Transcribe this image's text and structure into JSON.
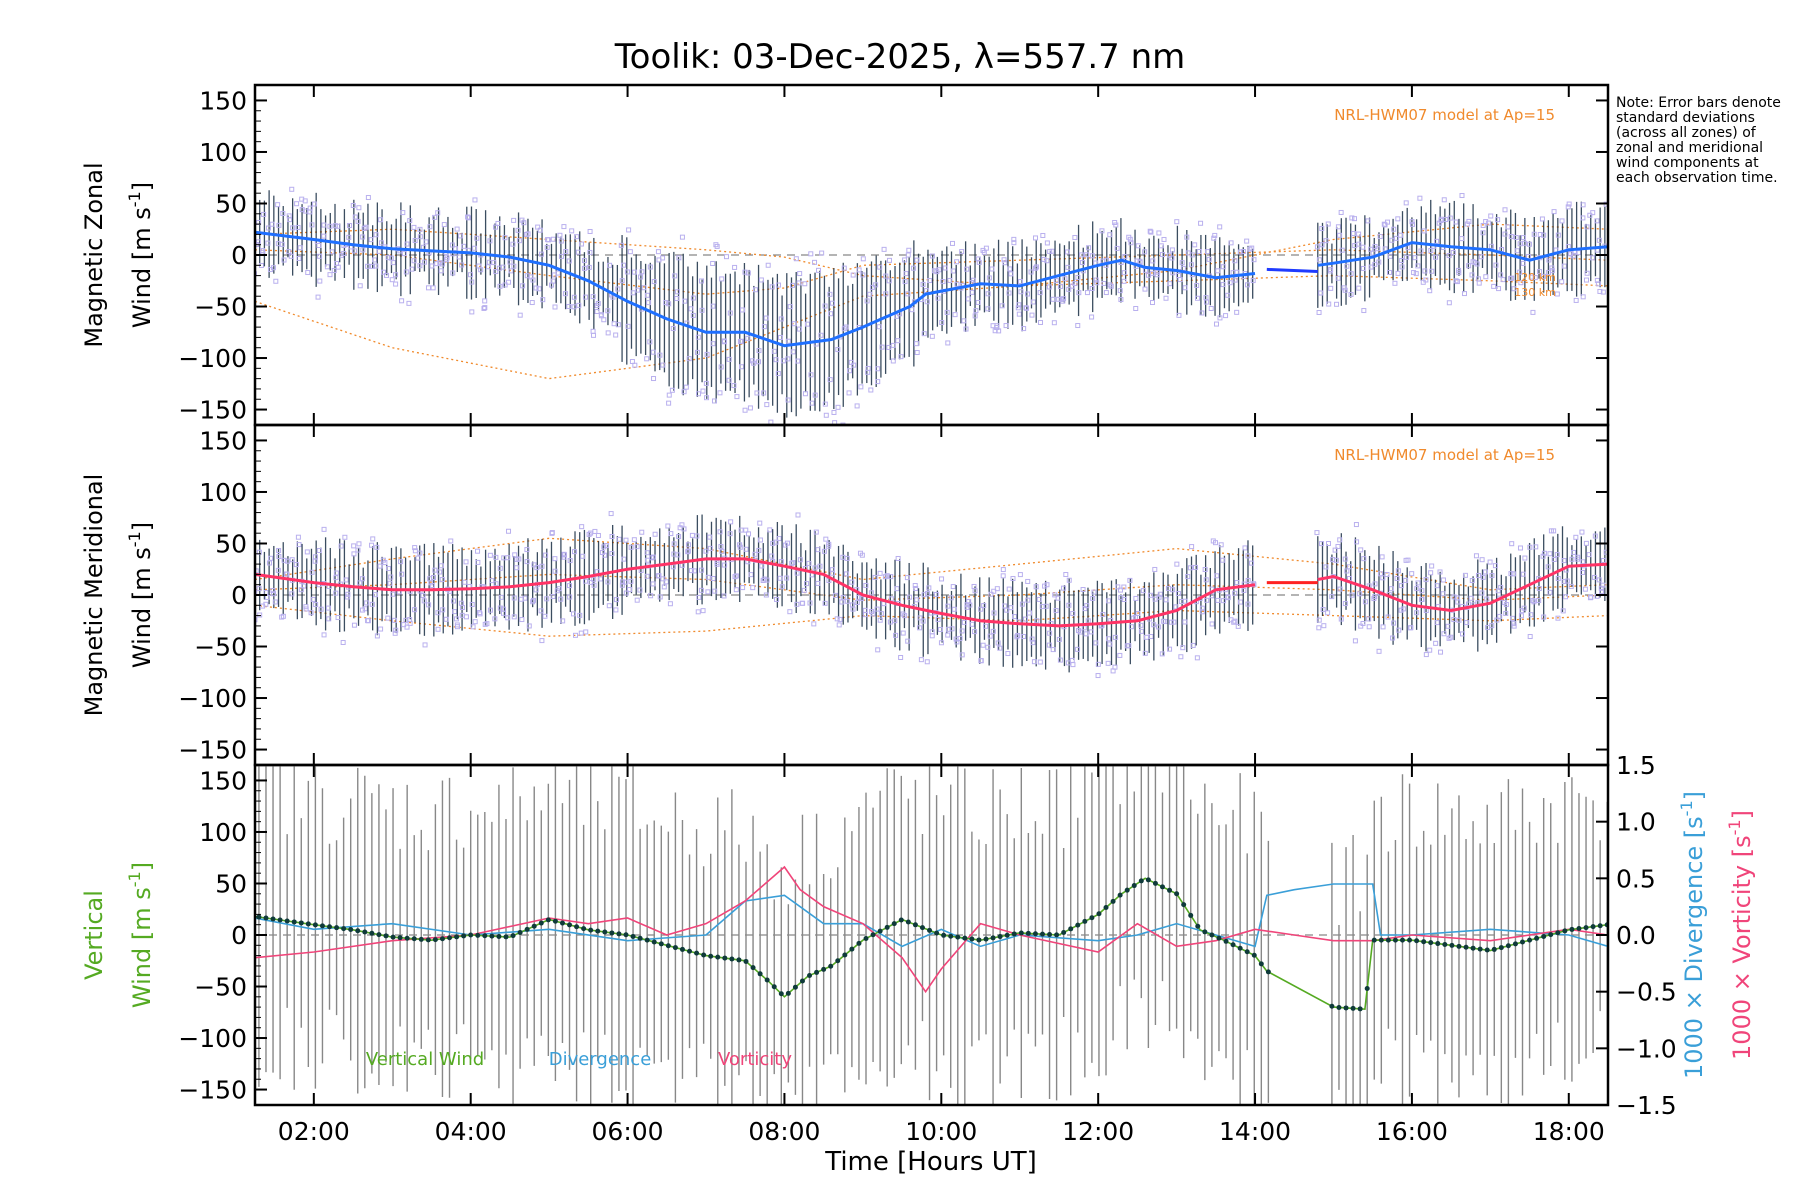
{
  "colors": {
    "zonal_mean": "#1e6fff",
    "zonal_line": "#1f3bff",
    "meridional_mean": "#ff3366",
    "model": "#f08a2c",
    "scatter": "#b9b0ee",
    "errorbar": "#1a2f45",
    "vertical": "#55aa22",
    "divergence": "#3a9fd8",
    "vorticity": "#f0457a",
    "grey": "#888888"
  },
  "note_text": "Note: Error bars denote standard deviations (across all zones) of zonal and meridional wind components at each observation time.",
  "chart_data": {
    "type": "line",
    "title": "Toolik: 03-Dec-2025, λ=557.7 nm",
    "xlabel": "Time [Hours UT]",
    "xlim": [
      1.25,
      18.5
    ],
    "x_ticks": [
      2,
      4,
      6,
      8,
      10,
      12,
      14,
      16,
      18
    ],
    "x_tick_labels": [
      "02:00",
      "04:00",
      "06:00",
      "08:00",
      "10:00",
      "12:00",
      "14:00",
      "16:00",
      "18:00"
    ],
    "panels": [
      {
        "name": "zonal",
        "ylabel_line1": "Magnetic Zonal",
        "ylabel_line2": "Wind [m s",
        "ylabel_exp": "-1",
        "ylabel_end": "]",
        "ylim": [
          -165,
          165
        ],
        "y_ticks": [
          150,
          100,
          50,
          0,
          -50,
          -100,
          -150
        ],
        "model_label": "NRL-HWM07 model at Ap=15",
        "model_alt_labels": [
          "120 km",
          "130 km"
        ],
        "mean_series": {
          "x": [
            1.25,
            2.0,
            2.5,
            3.0,
            3.5,
            4.0,
            4.5,
            5.0,
            5.5,
            6.0,
            6.5,
            7.0,
            7.5,
            8.0,
            8.3,
            8.6,
            9.0,
            9.3,
            9.6,
            9.8,
            10.0,
            10.5,
            11.0,
            11.5,
            12.0,
            12.3,
            12.6,
            13.0,
            13.5,
            14.0
          ],
          "y": [
            22,
            15,
            10,
            6,
            4,
            2,
            -2,
            -10,
            -25,
            -45,
            -62,
            -75,
            -75,
            -88,
            -85,
            -82,
            -70,
            -60,
            -50,
            -38,
            -35,
            -28,
            -30,
            -20,
            -10,
            -5,
            -12,
            -15,
            -22,
            -18
          ]
        },
        "gap_series": {
          "x": [
            14.15,
            14.8
          ],
          "y": [
            -14,
            -16
          ]
        },
        "mean_series_late": {
          "x": [
            14.8,
            15.0,
            15.5,
            16.0,
            16.5,
            17.0,
            17.5,
            18.0,
            18.5
          ],
          "y": [
            -10,
            -8,
            -2,
            12,
            8,
            5,
            -5,
            5,
            8
          ]
        },
        "model_series": [
          {
            "x": [
              1.25,
              3.0,
              5.0,
              7.0,
              8.0,
              9.0,
              11.0,
              13.0,
              15.0,
              17.0,
              18.5
            ],
            "y": [
              20,
              25,
              15,
              5,
              -2,
              -20,
              -30,
              -15,
              15,
              30,
              25
            ]
          },
          {
            "x": [
              1.25,
              3.0,
              5.0,
              7.0,
              8.0,
              9.0,
              11.0,
              13.0,
              15.0,
              17.0,
              18.5
            ],
            "y": [
              5,
              0,
              -20,
              -38,
              -32,
              -10,
              -5,
              0,
              5,
              0,
              -5
            ]
          },
          {
            "x": [
              1.25,
              3.0,
              5.0,
              7.0,
              8.0,
              9.0,
              11.0,
              13.0,
              15.0,
              17.0,
              18.5
            ],
            "y": [
              -45,
              -90,
              -120,
              -100,
              -70,
              -40,
              -30,
              -25,
              -20,
              -25,
              -30
            ]
          }
        ]
      },
      {
        "name": "meridional",
        "ylabel_line1": "Magnetic Meridional",
        "ylabel_line2": "Wind [m s",
        "ylabel_exp": "-1",
        "ylabel_end": "]",
        "ylim": [
          -165,
          165
        ],
        "y_ticks": [
          150,
          100,
          50,
          0,
          -50,
          -100,
          -150
        ],
        "model_label": "NRL-HWM07 model at Ap=15",
        "mean_series": {
          "x": [
            1.25,
            2.0,
            2.5,
            3.0,
            3.5,
            4.0,
            4.5,
            5.0,
            5.5,
            6.0,
            6.5,
            7.0,
            7.5,
            8.0,
            8.5,
            9.0,
            9.5,
            10.0,
            10.5,
            11.0,
            11.5,
            12.0,
            12.5,
            13.0,
            13.5,
            14.0
          ],
          "y": [
            20,
            12,
            8,
            5,
            5,
            6,
            8,
            12,
            18,
            25,
            30,
            35,
            35,
            28,
            20,
            0,
            -10,
            -18,
            -25,
            -28,
            -30,
            -28,
            -25,
            -15,
            5,
            10
          ]
        },
        "gap_series": {
          "x": [
            14.15,
            14.8
          ],
          "y": [
            12,
            12
          ]
        },
        "mean_series_late": {
          "x": [
            14.8,
            15.0,
            15.5,
            16.0,
            16.5,
            17.0,
            17.5,
            18.0,
            18.5
          ],
          "y": [
            15,
            18,
            5,
            -10,
            -15,
            -8,
            10,
            28,
            30
          ]
        },
        "model_series": [
          {
            "x": [
              1.25,
              3.0,
              5.0,
              7.0,
              9.0,
              11.0,
              13.0,
              15.0,
              17.0,
              18.5
            ],
            "y": [
              15,
              35,
              55,
              45,
              15,
              30,
              45,
              30,
              5,
              10
            ]
          },
          {
            "x": [
              1.25,
              3.0,
              5.0,
              7.0,
              9.0,
              11.0,
              13.0,
              15.0,
              17.0,
              18.5
            ],
            "y": [
              5,
              10,
              20,
              15,
              -5,
              0,
              10,
              5,
              -5,
              0
            ]
          },
          {
            "x": [
              1.25,
              3.0,
              5.0,
              7.0,
              9.0,
              11.0,
              13.0,
              15.0,
              17.0,
              18.5
            ],
            "y": [
              -10,
              -25,
              -40,
              -35,
              -20,
              -25,
              -15,
              -20,
              -25,
              -20
            ]
          }
        ]
      },
      {
        "name": "vertical",
        "ylabel_line1": "Vertical",
        "ylabel_line2": "Wind [m s",
        "ylabel_exp": "-1",
        "ylabel_end": "]",
        "ylim": [
          -165,
          165
        ],
        "y_ticks": [
          150,
          100,
          50,
          0,
          -50,
          -100,
          -150
        ],
        "right_axis": {
          "ylim": [
            -1.5,
            1.5
          ],
          "ticks": [
            1.5,
            1.0,
            0.5,
            0.0,
            -0.5,
            -1.0,
            -1.5
          ],
          "tick_labels": [
            "1.5",
            "1.0",
            "0.5",
            "0.0",
            "−0.5",
            "−1.0",
            "−1.5"
          ],
          "label_divergence": "1000 × Divergence [s",
          "label_vorticity": "1000 × Vorticity [s",
          "label_exp": "-1",
          "label_end": "]"
        },
        "legend": [
          "Vertical Wind",
          "Divergence",
          "Vorticity"
        ],
        "vertical_series": {
          "x": [
            1.25,
            2.0,
            2.5,
            3.0,
            3.5,
            4.0,
            4.5,
            5.0,
            5.5,
            6.0,
            6.5,
            7.0,
            7.5,
            7.8,
            8.0,
            8.3,
            8.6,
            9.0,
            9.5,
            10.0,
            10.5,
            11.0,
            11.5,
            12.0,
            12.3,
            12.6,
            13.0,
            13.3,
            13.6,
            14.0,
            14.15,
            15.0,
            15.4,
            15.5,
            16.0,
            16.5,
            17.0,
            17.5,
            18.0,
            18.5
          ],
          "y": [
            18,
            10,
            5,
            -2,
            -5,
            0,
            -2,
            15,
            5,
            0,
            -10,
            -20,
            -25,
            -45,
            -60,
            -40,
            -30,
            -5,
            15,
            0,
            -5,
            2,
            0,
            20,
            40,
            55,
            40,
            5,
            -5,
            -20,
            -35,
            -70,
            -72,
            -5,
            -5,
            -10,
            -15,
            -5,
            5,
            10
          ]
        },
        "divergence_series": {
          "x": [
            1.25,
            2.0,
            3.0,
            4.0,
            5.0,
            6.0,
            7.0,
            7.5,
            8.0,
            8.5,
            9.0,
            9.5,
            10.0,
            10.5,
            11.0,
            12.0,
            12.5,
            13.0,
            13.5,
            14.0,
            14.15,
            14.5,
            15.0,
            15.5,
            15.6,
            16.0,
            17.0,
            18.0,
            18.5
          ],
          "y": [
            0.15,
            0.05,
            0.1,
            0.0,
            0.05,
            -0.05,
            0.0,
            0.3,
            0.35,
            0.1,
            0.1,
            -0.1,
            0.05,
            -0.1,
            0.0,
            -0.05,
            0.0,
            0.1,
            0.0,
            -0.1,
            0.35,
            0.4,
            0.45,
            0.45,
            0.0,
            0.0,
            0.05,
            0.0,
            -0.1
          ]
        },
        "vorticity_series": {
          "x": [
            1.25,
            2.0,
            3.0,
            4.0,
            5.0,
            5.5,
            6.0,
            6.5,
            7.0,
            7.5,
            8.0,
            8.2,
            8.5,
            9.0,
            9.5,
            9.8,
            10.0,
            10.5,
            11.0,
            12.0,
            12.5,
            13.0,
            13.5,
            14.0,
            14.5,
            15.0,
            15.5,
            16.0,
            17.0,
            18.0,
            18.5
          ],
          "y": [
            -0.2,
            -0.15,
            -0.05,
            0.0,
            0.15,
            0.1,
            0.15,
            0.0,
            0.1,
            0.3,
            0.6,
            0.4,
            0.25,
            0.1,
            -0.2,
            -0.5,
            -0.3,
            0.1,
            0.0,
            -0.15,
            0.1,
            -0.1,
            -0.05,
            0.05,
            0.0,
            -0.05,
            -0.05,
            0.0,
            -0.05,
            0.05,
            0.0
          ]
        }
      }
    ]
  }
}
